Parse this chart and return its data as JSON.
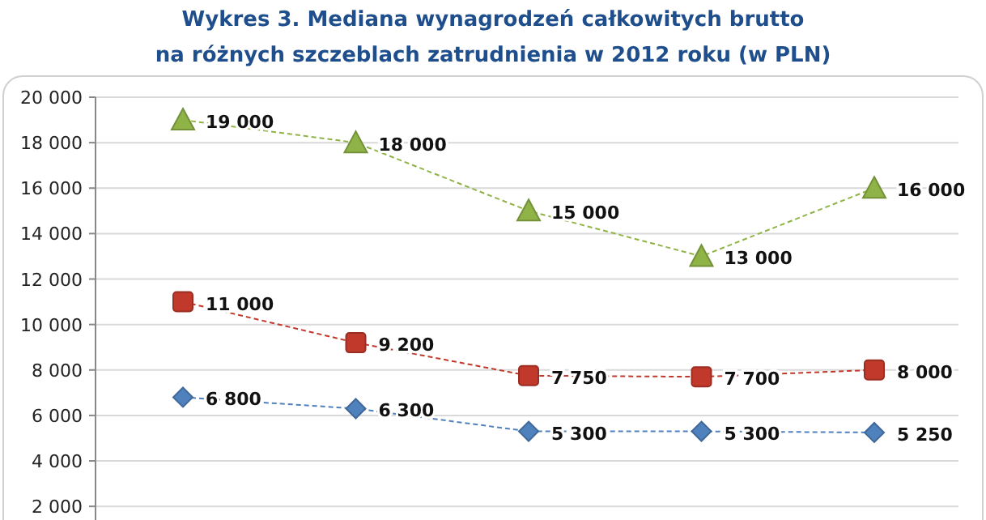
{
  "chart_data": {
    "type": "line",
    "title": "Wykres 3. Mediana wynagrodzeń całkowitych brutto\nna różnych szczeblach zatrudnienia w 2012 roku (w PLN)",
    "categories": [
      null,
      null,
      null,
      null,
      null
    ],
    "series": [
      {
        "color": "#8fb347",
        "marker": "triangle",
        "values": [
          19000,
          18000,
          15000,
          13000,
          16000
        ],
        "value_labels": [
          "19 000",
          "18 000",
          "15 000",
          "13 000",
          "16 000"
        ]
      },
      {
        "color": "#c0392b",
        "marker": "square",
        "values": [
          11000,
          9200,
          7750,
          7700,
          8000
        ],
        "value_labels": [
          "11 000",
          "9 200",
          "7 750",
          "7 700",
          "8 000"
        ]
      },
      {
        "color": "#4f81bd",
        "marker": "diamond",
        "values": [
          6800,
          6300,
          5300,
          5300,
          5250
        ],
        "value_labels": [
          "6 800",
          "6 300",
          "5 300",
          "5 300",
          "5 250"
        ]
      }
    ],
    "ylim": [
      1400,
      20000
    ],
    "yticks": [
      {
        "value": 2000,
        "label": "2 000"
      },
      {
        "value": 4000,
        "label": "4 000"
      },
      {
        "value": 6000,
        "label": "6 000"
      },
      {
        "value": 8000,
        "label": "8 000"
      },
      {
        "value": 10000,
        "label": "10 000"
      },
      {
        "value": 12000,
        "label": "12 000"
      },
      {
        "value": 14000,
        "label": "14 000"
      },
      {
        "value": 16000,
        "label": "16 000"
      },
      {
        "value": 18000,
        "label": "18 000"
      },
      {
        "value": 20000,
        "label": "20 000"
      }
    ],
    "grid": "y",
    "line_style": "dashed"
  }
}
